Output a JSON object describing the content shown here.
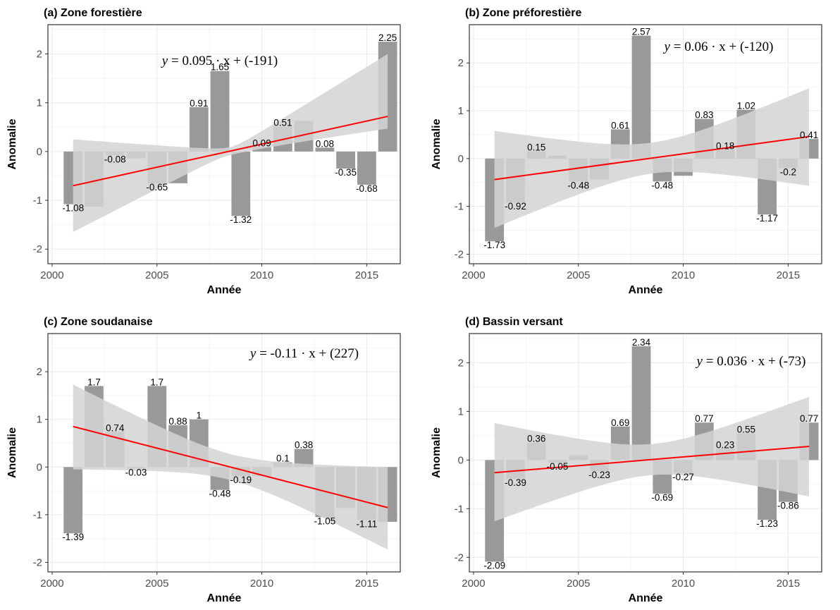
{
  "chart_data": [
    {
      "type": "bar",
      "title": "(a) Zone forestière",
      "xlabel": "Année",
      "ylabel": "Anomalie",
      "equation": {
        "lhs": "y",
        "rhs": "0.095 · x + (-191)"
      },
      "x": [
        2001,
        2002,
        2003,
        2004,
        2005,
        2006,
        2007,
        2008,
        2009,
        2010,
        2011,
        2012,
        2013,
        2014,
        2015,
        2016
      ],
      "values": [
        -1.08,
        -1.13,
        -0.08,
        -0.14,
        -0.65,
        -0.65,
        0.91,
        1.65,
        -1.32,
        0.09,
        0.51,
        0.63,
        0.08,
        -0.35,
        -0.68,
        2.25
      ],
      "bar_labels": [
        "-1.08",
        "",
        "-0.08",
        "",
        "-0.65",
        "",
        "0.91",
        "1.65",
        "-1.32",
        "0.09",
        "0.51",
        "",
        "0.08",
        "-0.35",
        "-0.68",
        "2.25"
      ],
      "trend": {
        "slope": 0.095,
        "start": -0.7,
        "end": 0.72
      },
      "ci_lower": [
        -1.65,
        0.47
      ],
      "ci_upper": [
        0.25,
        2.0
      ],
      "xlim": [
        1999.8,
        2016.6
      ],
      "ylim": [
        -2.3,
        2.6
      ],
      "xticks": [
        "2000",
        "2005",
        "2010",
        "2015"
      ],
      "yticks": [
        "-2",
        "-1",
        "0",
        "1",
        "2"
      ],
      "grid": true,
      "colors": {
        "bar": "#999999",
        "trend": "#ff0000",
        "ribbon": "#d3d3d3"
      }
    },
    {
      "type": "bar",
      "title": "(b) Zone préforestière",
      "xlabel": "Année",
      "ylabel": "Anomalie",
      "equation": {
        "lhs": "y",
        "rhs": "0.06 · x + (-120)"
      },
      "x": [
        2001,
        2002,
        2003,
        2004,
        2005,
        2006,
        2007,
        2008,
        2009,
        2010,
        2011,
        2012,
        2013,
        2014,
        2015,
        2016
      ],
      "values": [
        -1.73,
        -0.92,
        0.15,
        0.06,
        -0.48,
        -0.44,
        0.61,
        2.57,
        -0.48,
        -0.36,
        0.83,
        0.18,
        1.02,
        -1.17,
        -0.2,
        0.41
      ],
      "bar_labels": [
        "-1.73",
        "-0.92",
        "0.15",
        "",
        "-0.48",
        "",
        "0.61",
        "2.57",
        "-0.48",
        "",
        "0.83",
        "0.18",
        "1.02",
        "-1.17",
        "-0.2",
        "0.41"
      ],
      "trend": {
        "slope": 0.06,
        "start": -0.44,
        "end": 0.46
      },
      "ci_lower": [
        -1.45,
        -0.57
      ],
      "ci_upper": [
        0.58,
        1.47
      ],
      "xlim": [
        1999.8,
        2016.6
      ],
      "ylim": [
        -2.2,
        2.8
      ],
      "xticks": [
        "2000",
        "2005",
        "2010",
        "2015"
      ],
      "yticks": [
        "-2",
        "-1",
        "0",
        "1",
        "2"
      ],
      "grid": true,
      "colors": {
        "bar": "#999999",
        "trend": "#ff0000",
        "ribbon": "#d3d3d3"
      }
    },
    {
      "type": "bar",
      "title": "(c) Zone soudanaise",
      "xlabel": "Année",
      "ylabel": "Anomalie",
      "equation": {
        "lhs": "y",
        "rhs": "-0.11 · x + (227)"
      },
      "x": [
        2001,
        2002,
        2003,
        2004,
        2005,
        2006,
        2007,
        2008,
        2009,
        2010,
        2011,
        2012,
        2013,
        2014,
        2015,
        2016
      ],
      "values": [
        -1.39,
        1.7,
        0.74,
        -0.03,
        1.7,
        0.88,
        1.0,
        -0.48,
        -0.19,
        -0.19,
        0.1,
        0.38,
        -1.05,
        -0.86,
        -1.11,
        -1.15
      ],
      "bar_labels": [
        "-1.39",
        "1.7",
        "0.74",
        "-0.03",
        "1.7",
        "0.88",
        "1",
        "-0.48",
        "-0.19",
        "",
        "0.1",
        "0.38",
        "-1.05",
        "",
        "-1.11",
        ""
      ],
      "trend": {
        "slope": -0.11,
        "start": 0.85,
        "end": -0.85
      },
      "ci_lower": [
        -0.05,
        -1.73
      ],
      "ci_upper": [
        1.73,
        0.0
      ],
      "xlim": [
        1999.8,
        2016.6
      ],
      "ylim": [
        -2.2,
        2.8
      ],
      "xticks": [
        "2000",
        "2005",
        "2010",
        "2015"
      ],
      "yticks": [
        "-2",
        "-1",
        "0",
        "1",
        "2"
      ],
      "grid": true,
      "colors": {
        "bar": "#999999",
        "trend": "#ff0000",
        "ribbon": "#d3d3d3"
      }
    },
    {
      "type": "bar",
      "title": "(d) Bassin versant",
      "xlabel": "Année",
      "ylabel": "Anomalie",
      "equation": {
        "lhs": "y",
        "rhs": "0.036 · x + (-73)"
      },
      "x": [
        2001,
        2002,
        2003,
        2004,
        2005,
        2006,
        2007,
        2008,
        2009,
        2010,
        2011,
        2012,
        2013,
        2014,
        2015,
        2016
      ],
      "values": [
        -2.09,
        -0.39,
        0.36,
        -0.05,
        0.1,
        -0.23,
        0.69,
        2.34,
        -0.69,
        -0.27,
        0.77,
        0.23,
        0.55,
        -1.23,
        -0.86,
        0.77
      ],
      "bar_labels": [
        "-2.09",
        "-0.39",
        "0.36",
        "-0.05",
        "",
        "-0.23",
        "0.69",
        "2.34",
        "-0.69",
        "-0.27",
        "0.77",
        "0.23",
        "0.55",
        "-1.23",
        "-0.86",
        "0.77"
      ],
      "trend": {
        "slope": 0.036,
        "start": -0.26,
        "end": 0.28
      },
      "ci_lower": [
        -1.26,
        -0.75
      ],
      "ci_upper": [
        0.76,
        1.3
      ],
      "xlim": [
        1999.8,
        2016.6
      ],
      "ylim": [
        -2.3,
        2.6
      ],
      "xticks": [
        "2000",
        "2005",
        "2010",
        "2015"
      ],
      "yticks": [
        "-2",
        "-1",
        "0",
        "1",
        "2"
      ],
      "grid": true,
      "colors": {
        "bar": "#999999",
        "trend": "#ff0000",
        "ribbon": "#d3d3d3"
      }
    }
  ]
}
